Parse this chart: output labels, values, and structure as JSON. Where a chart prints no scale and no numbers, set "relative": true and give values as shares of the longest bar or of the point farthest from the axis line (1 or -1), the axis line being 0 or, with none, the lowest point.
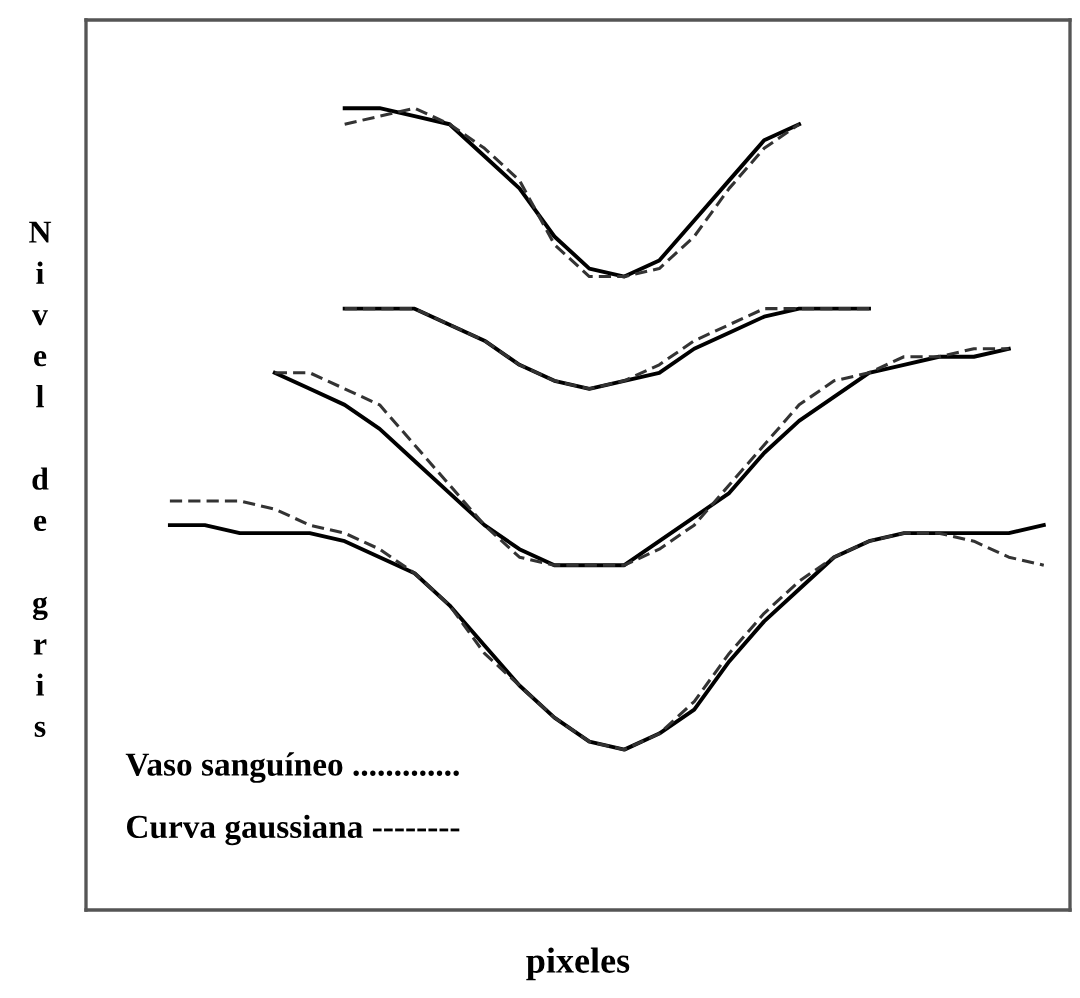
{
  "chart_data": {
    "type": "line",
    "relative": true,
    "grid": false,
    "legend": false,
    "xlabel": "pixeles",
    "ylabel": "Nivel de gris",
    "categories": [
      null,
      null,
      null,
      null,
      null,
      null,
      null,
      null,
      null,
      null,
      null,
      null,
      null,
      null,
      null,
      null,
      null,
      null,
      null,
      null,
      null,
      null,
      null,
      null,
      null,
      null
    ],
    "series": [
      {
        "color": "#000000",
        "line_style": "solid",
        "values": [
          null,
          null,
          null,
          null,
          null,
          1.0,
          1.0,
          0.99,
          0.98,
          0.94,
          0.9,
          0.84,
          0.8,
          0.79,
          0.81,
          0.86,
          0.91,
          0.96,
          0.98,
          null,
          null,
          null,
          null,
          null,
          null,
          null
        ]
      },
      {
        "color": "#333333",
        "line_style": "dashed",
        "values": [
          null,
          null,
          null,
          null,
          null,
          0.98,
          0.99,
          1.0,
          0.98,
          0.95,
          0.91,
          0.83,
          0.79,
          0.79,
          0.8,
          0.84,
          0.9,
          0.95,
          0.98,
          null,
          null,
          null,
          null,
          null,
          null,
          null
        ]
      },
      {
        "color": "#000000",
        "line_style": "solid",
        "values": [
          null,
          null,
          null,
          null,
          null,
          0.75,
          0.75,
          0.75,
          0.73,
          0.71,
          0.68,
          0.66,
          0.65,
          0.66,
          0.67,
          0.7,
          0.72,
          0.74,
          0.75,
          0.75,
          0.75,
          null,
          null,
          null,
          null,
          null
        ]
      },
      {
        "color": "#333333",
        "line_style": "dashed",
        "values": [
          null,
          null,
          null,
          null,
          null,
          0.75,
          0.75,
          0.75,
          0.73,
          0.71,
          0.68,
          0.66,
          0.65,
          0.66,
          0.68,
          0.71,
          0.73,
          0.75,
          0.75,
          0.75,
          0.75,
          null,
          null,
          null,
          null,
          null
        ]
      },
      {
        "color": "#000000",
        "line_style": "solid",
        "values": [
          null,
          null,
          null,
          0.67,
          0.65,
          0.63,
          0.6,
          0.56,
          0.52,
          0.48,
          0.45,
          0.43,
          0.43,
          0.43,
          0.46,
          0.49,
          0.52,
          0.57,
          0.61,
          0.64,
          0.67,
          0.68,
          0.69,
          0.69,
          0.7,
          null
        ]
      },
      {
        "color": "#333333",
        "line_style": "dashed",
        "values": [
          null,
          null,
          null,
          0.67,
          0.67,
          0.65,
          0.63,
          0.58,
          0.53,
          0.48,
          0.44,
          0.43,
          0.43,
          0.43,
          0.45,
          0.48,
          0.53,
          0.58,
          0.63,
          0.66,
          0.67,
          0.69,
          0.69,
          0.7,
          0.7,
          null
        ]
      },
      {
        "color": "#000000",
        "line_style": "solid",
        "values": [
          0.48,
          0.48,
          0.47,
          0.47,
          0.47,
          0.46,
          0.44,
          0.42,
          0.38,
          0.33,
          0.28,
          0.24,
          0.21,
          0.2,
          0.22,
          0.25,
          0.31,
          0.36,
          0.4,
          0.44,
          0.46,
          0.47,
          0.47,
          0.47,
          0.47,
          0.48
        ]
      },
      {
        "color": "#333333",
        "line_style": "dashed",
        "values": [
          0.51,
          0.51,
          0.51,
          0.5,
          0.48,
          0.47,
          0.45,
          0.42,
          0.38,
          0.32,
          0.28,
          0.24,
          0.21,
          0.2,
          0.22,
          0.26,
          0.32,
          0.37,
          0.41,
          0.44,
          0.46,
          0.47,
          0.47,
          0.46,
          0.44,
          0.43
        ]
      }
    ],
    "annotations": [
      "Vaso sanguíneo .............",
      "Curva gaussiana --------"
    ]
  }
}
